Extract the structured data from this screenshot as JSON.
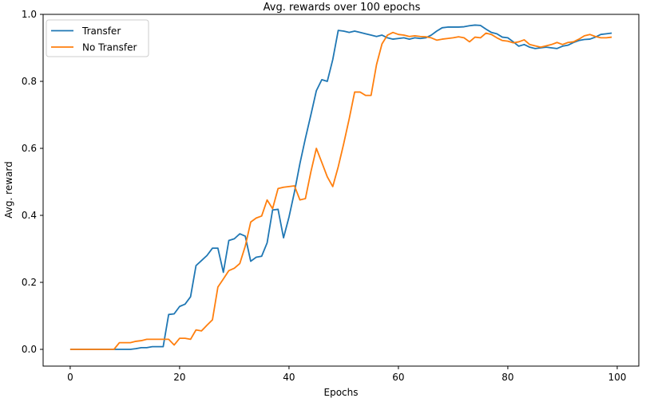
{
  "chart_data": {
    "type": "line",
    "title": "Avg. rewards over 100 epochs",
    "xlabel": "Epochs",
    "ylabel": "Avg. reward",
    "xlim": [
      -4.95,
      103.95
    ],
    "ylim": [
      -0.05,
      1.0
    ],
    "xticks": [
      0,
      20,
      40,
      60,
      80,
      100
    ],
    "yticks": [
      0.0,
      0.2,
      0.4,
      0.6,
      0.8,
      1.0
    ],
    "xtick_labels": [
      "0",
      "20",
      "40",
      "60",
      "80",
      "100"
    ],
    "ytick_labels": [
      "0.0",
      "0.2",
      "0.4",
      "0.6",
      "0.8",
      "1.0"
    ],
    "grid": false,
    "legend_position": "top-left",
    "series": [
      {
        "name": "Transfer",
        "color": "#1f77b4",
        "x": [
          0,
          1,
          2,
          3,
          4,
          5,
          6,
          7,
          8,
          9,
          10,
          11,
          12,
          13,
          14,
          15,
          16,
          17,
          18,
          19,
          20,
          21,
          22,
          23,
          24,
          25,
          26,
          27,
          28,
          29,
          30,
          31,
          32,
          33,
          34,
          35,
          36,
          37,
          38,
          39,
          40,
          41,
          42,
          43,
          44,
          45,
          46,
          47,
          48,
          49,
          50,
          51,
          52,
          53,
          54,
          55,
          56,
          57,
          58,
          59,
          60,
          61,
          62,
          63,
          64,
          65,
          66,
          67,
          68,
          69,
          70,
          71,
          72,
          73,
          74,
          75,
          76,
          77,
          78,
          79,
          80,
          81,
          82,
          83,
          84,
          85,
          86,
          87,
          88,
          89,
          90,
          91,
          92,
          93,
          94,
          95,
          96,
          97,
          98,
          99
        ],
        "values": [
          0.0,
          0.0,
          0.0,
          0.0,
          0.0,
          0.0,
          0.0,
          0.0,
          0.0,
          0.0,
          0.0,
          0.0,
          0.002,
          0.005,
          0.005,
          0.008,
          0.008,
          0.008,
          0.104,
          0.106,
          0.128,
          0.135,
          0.157,
          0.25,
          0.265,
          0.28,
          0.302,
          0.302,
          0.23,
          0.325,
          0.33,
          0.345,
          0.338,
          0.263,
          0.275,
          0.278,
          0.318,
          0.416,
          0.418,
          0.333,
          0.395,
          0.47,
          0.555,
          0.63,
          0.7,
          0.772,
          0.805,
          0.8,
          0.865,
          0.952,
          0.95,
          0.946,
          0.95,
          0.946,
          0.942,
          0.938,
          0.934,
          0.938,
          0.93,
          0.926,
          0.928,
          0.93,
          0.926,
          0.93,
          0.928,
          0.93,
          0.938,
          0.95,
          0.96,
          0.962,
          0.962,
          0.962,
          0.963,
          0.966,
          0.968,
          0.967,
          0.956,
          0.946,
          0.942,
          0.932,
          0.93,
          0.918,
          0.905,
          0.91,
          0.902,
          0.898,
          0.9,
          0.902,
          0.9,
          0.898,
          0.905,
          0.908,
          0.916,
          0.922,
          0.925,
          0.926,
          0.932,
          0.94,
          0.942,
          0.944
        ]
      },
      {
        "name": "No Transfer",
        "color": "#ff7f0e",
        "x": [
          0,
          1,
          2,
          3,
          4,
          5,
          6,
          7,
          8,
          9,
          10,
          11,
          12,
          13,
          14,
          15,
          16,
          17,
          18,
          19,
          20,
          21,
          22,
          23,
          24,
          25,
          26,
          27,
          28,
          29,
          30,
          31,
          32,
          33,
          34,
          35,
          36,
          37,
          38,
          39,
          40,
          41,
          42,
          43,
          44,
          45,
          46,
          47,
          48,
          49,
          50,
          51,
          52,
          53,
          54,
          55,
          56,
          57,
          58,
          59,
          60,
          61,
          62,
          63,
          64,
          65,
          66,
          67,
          68,
          69,
          70,
          71,
          72,
          73,
          74,
          75,
          76,
          77,
          78,
          79,
          80,
          81,
          82,
          83,
          84,
          85,
          86,
          87,
          88,
          89,
          90,
          91,
          92,
          93,
          94,
          95,
          96,
          97,
          98,
          99
        ],
        "values": [
          0.0,
          0.0,
          0.0,
          0.0,
          0.0,
          0.0,
          0.0,
          0.0,
          0.0,
          0.02,
          0.02,
          0.02,
          0.024,
          0.026,
          0.03,
          0.03,
          0.03,
          0.03,
          0.03,
          0.013,
          0.033,
          0.033,
          0.03,
          0.058,
          0.055,
          0.072,
          0.088,
          0.186,
          0.21,
          0.235,
          0.242,
          0.256,
          0.308,
          0.38,
          0.392,
          0.398,
          0.446,
          0.42,
          0.48,
          0.484,
          0.486,
          0.488,
          0.446,
          0.45,
          0.53,
          0.6,
          0.558,
          0.515,
          0.486,
          0.545,
          0.614,
          0.688,
          0.768,
          0.768,
          0.758,
          0.758,
          0.85,
          0.912,
          0.938,
          0.946,
          0.94,
          0.938,
          0.934,
          0.936,
          0.934,
          0.933,
          0.93,
          0.923,
          0.926,
          0.928,
          0.93,
          0.933,
          0.93,
          0.918,
          0.932,
          0.93,
          0.944,
          0.94,
          0.93,
          0.922,
          0.92,
          0.915,
          0.918,
          0.924,
          0.91,
          0.906,
          0.902,
          0.906,
          0.91,
          0.916,
          0.91,
          0.916,
          0.918,
          0.926,
          0.936,
          0.94,
          0.934,
          0.93,
          0.93,
          0.932
        ]
      }
    ]
  }
}
